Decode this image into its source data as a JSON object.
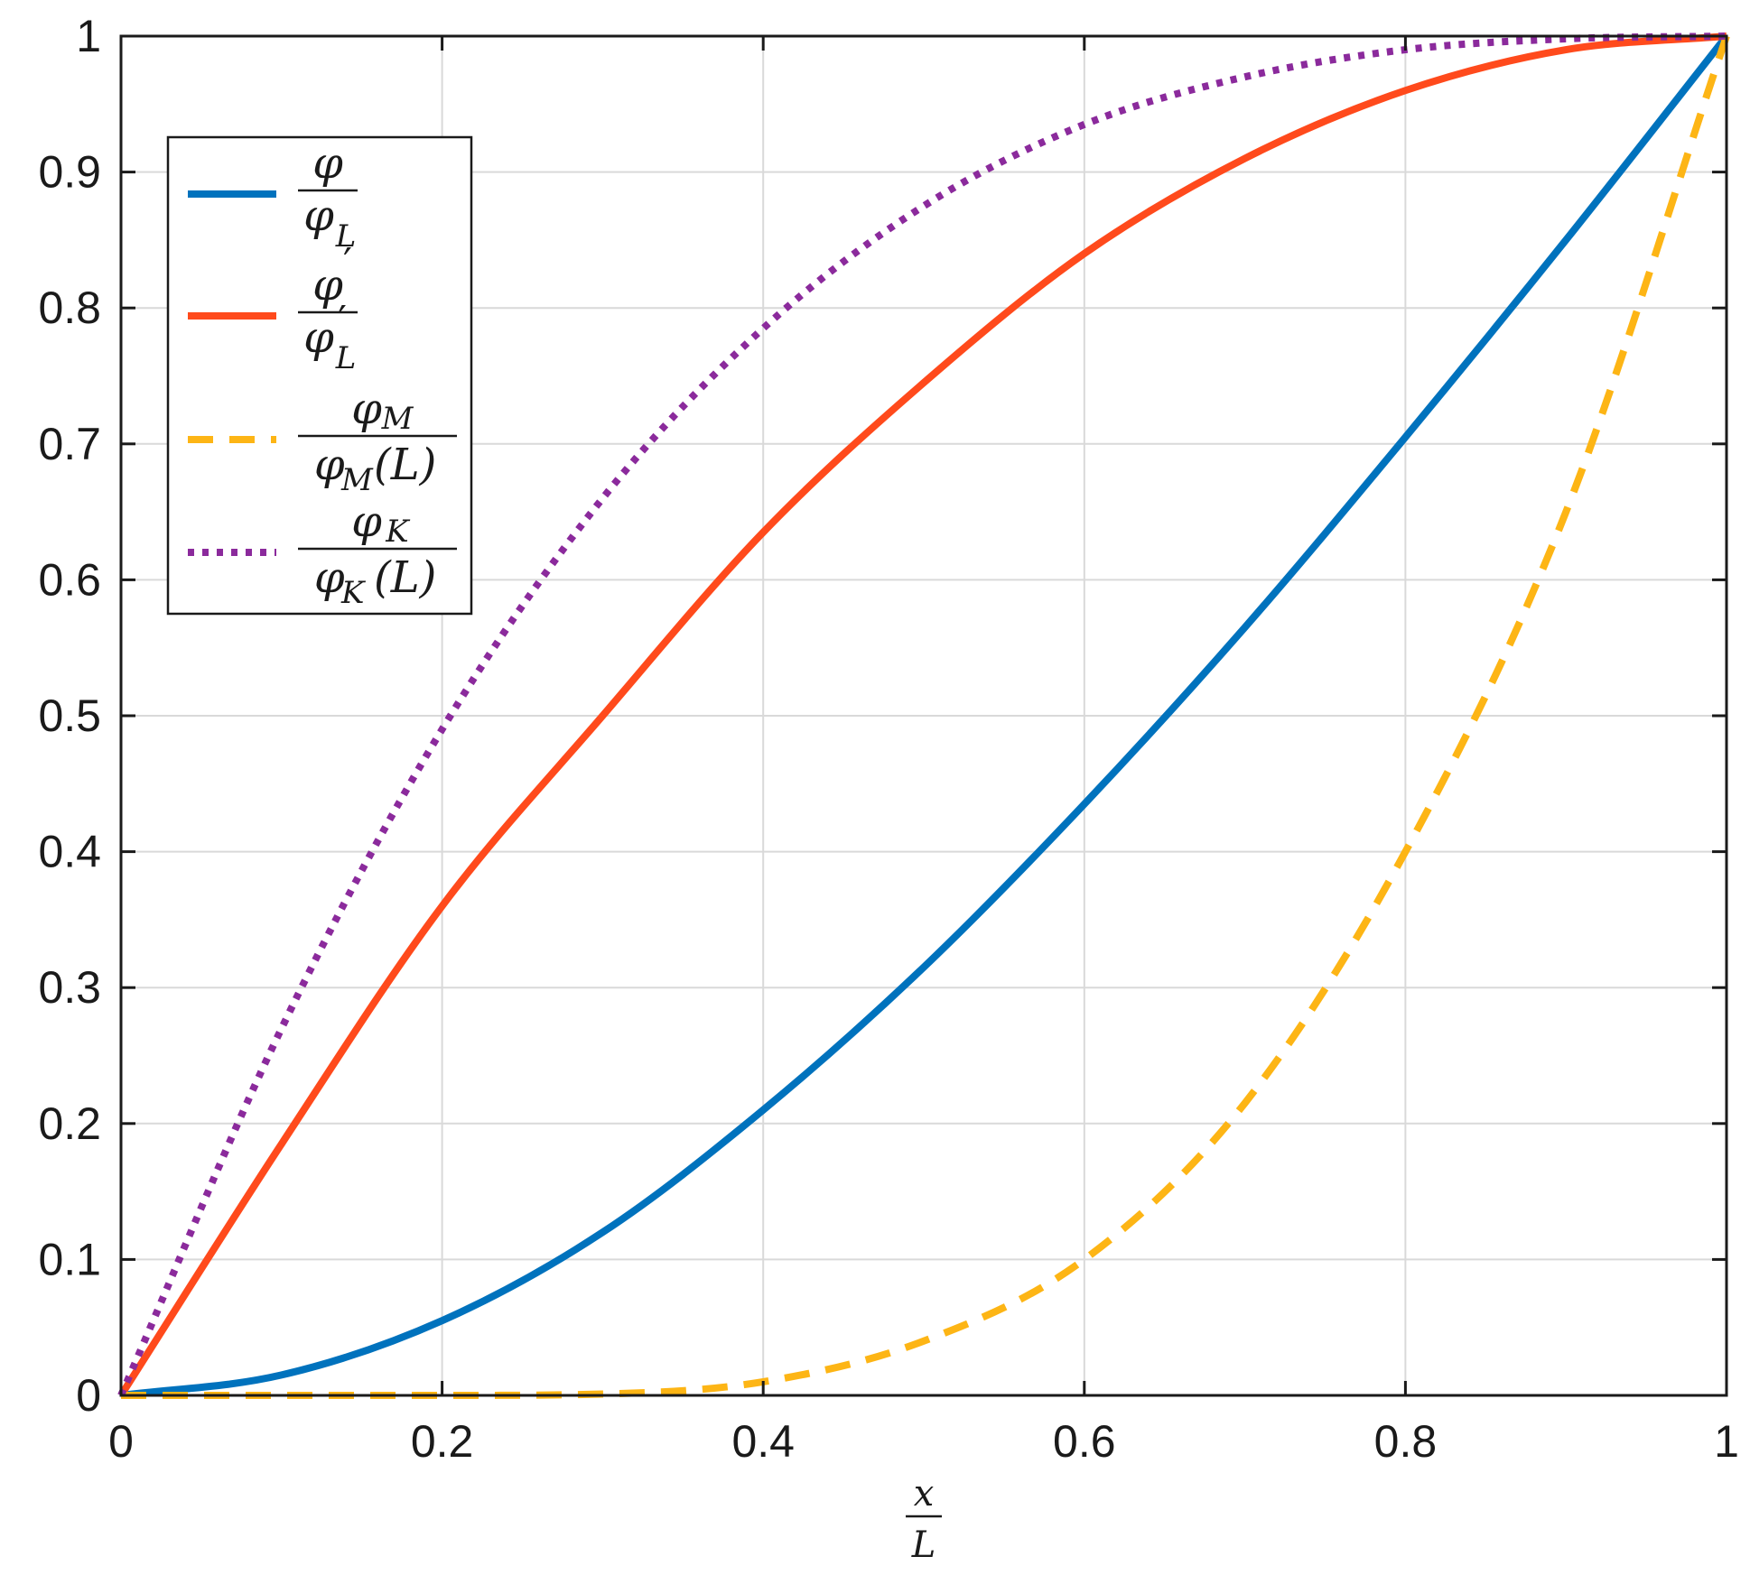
{
  "chart_data": {
    "type": "line",
    "title": "",
    "xlabel": {
      "numerator": "x",
      "denominator": "L"
    },
    "ylabel": "",
    "xlim": [
      0,
      1
    ],
    "ylim": [
      0,
      1
    ],
    "grid": true,
    "legend_position": "top-left",
    "x_ticks": [
      "0",
      "0.2",
      "0.4",
      "0.6",
      "0.8",
      "1"
    ],
    "y_ticks": [
      "0",
      "0.1",
      "0.2",
      "0.3",
      "0.4",
      "0.5",
      "0.6",
      "0.7",
      "0.8",
      "0.9",
      "1"
    ],
    "x": [
      0,
      0.1,
      0.2,
      0.3,
      0.4,
      0.5,
      0.6,
      0.7,
      0.8,
      0.9,
      1.0
    ],
    "series": [
      {
        "name": "phi / phi_L",
        "legend": {
          "numerator": "φ",
          "denominator": "φ",
          "den_sub": "L",
          "prime": false,
          "suffix": ""
        },
        "color": "#0072BD",
        "style": "solid",
        "values": [
          0,
          0.015,
          0.055,
          0.12,
          0.21,
          0.315,
          0.435,
          0.565,
          0.705,
          0.85,
          1.0
        ]
      },
      {
        "name": "phi' / phi'_L",
        "legend": {
          "numerator": "φ",
          "denominator": "φ",
          "den_sub": "L",
          "prime": true,
          "suffix": ""
        },
        "color": "#FF4A1C",
        "style": "solid",
        "values": [
          0,
          0.185,
          0.36,
          0.5,
          0.635,
          0.745,
          0.84,
          0.91,
          0.96,
          0.99,
          1.0
        ]
      },
      {
        "name": "phi_M / phi_M(L)",
        "legend": {
          "numerator": "φ",
          "num_sub": "M",
          "denominator": "φ",
          "den_sub": "M",
          "prime": false,
          "suffix": "(L)"
        },
        "color": "#FDB515",
        "style": "dashed",
        "values": [
          0,
          0,
          0,
          0.001,
          0.01,
          0.04,
          0.1,
          0.215,
          0.4,
          0.65,
          1.0
        ]
      },
      {
        "name": "phi_K / phi_K(L)",
        "legend": {
          "numerator": "φ",
          "num_sub": "K",
          "denominator": "φ",
          "den_sub": "K",
          "prime": false,
          "suffix": "(L)"
        },
        "color": "#8B2A9C",
        "style": "dotted",
        "values": [
          0,
          0.27,
          0.49,
          0.66,
          0.785,
          0.875,
          0.935,
          0.97,
          0.99,
          0.998,
          1.0
        ]
      }
    ]
  }
}
